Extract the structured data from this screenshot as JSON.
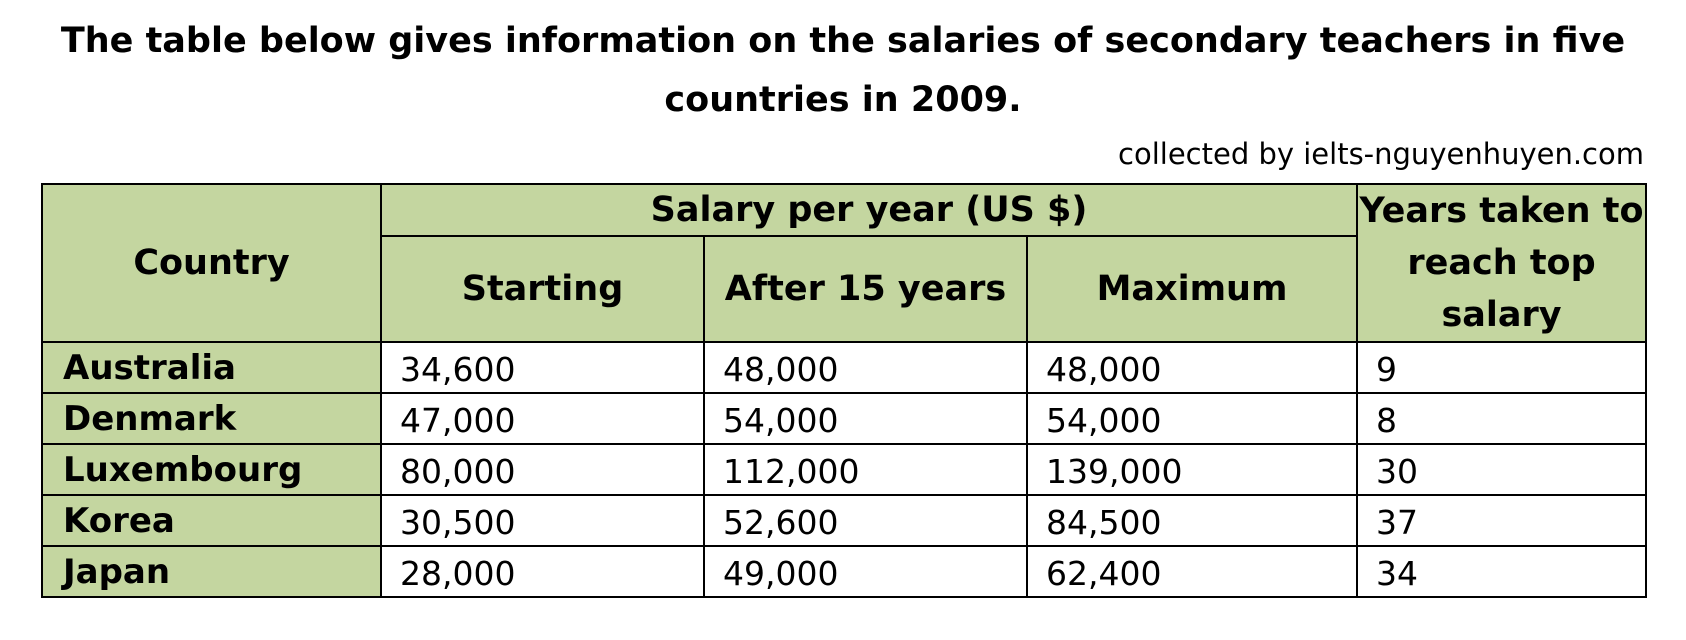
{
  "title_line1": "The table below gives information on the salaries of secondary teachers in five",
  "title_line2": "countries in 2009.",
  "credit": "collected by ielts-nguyenhuyen.com",
  "colors": {
    "header_fill": "#c4d6a0",
    "border": "#000000"
  },
  "chart_data": {
    "type": "table",
    "title": "The table below gives information on the salaries of secondary teachers in five countries in 2009.",
    "headers": {
      "country": "Country",
      "salary_group": "Salary per year (US $)",
      "starting": "Starting",
      "after15": "After 15 years",
      "maximum": "Maximum",
      "years_line1": "Years taken to",
      "years_line2": "reach top",
      "years_line3": "salary"
    },
    "rows": [
      {
        "country": "Australia",
        "starting": "34,600",
        "after15": "48,000",
        "maximum": "48,000",
        "years": "9"
      },
      {
        "country": "Denmark",
        "starting": "47,000",
        "after15": "54,000",
        "maximum": "54,000",
        "years": "8"
      },
      {
        "country": "Luxembourg",
        "starting": "80,000",
        "after15": "112,000",
        "maximum": "139,000",
        "years": "30"
      },
      {
        "country": "Korea",
        "starting": "30,500",
        "after15": "52,600",
        "maximum": "84,500",
        "years": "37"
      },
      {
        "country": "Japan",
        "starting": "28,000",
        "after15": "49,000",
        "maximum": "62,400",
        "years": "34"
      }
    ]
  }
}
